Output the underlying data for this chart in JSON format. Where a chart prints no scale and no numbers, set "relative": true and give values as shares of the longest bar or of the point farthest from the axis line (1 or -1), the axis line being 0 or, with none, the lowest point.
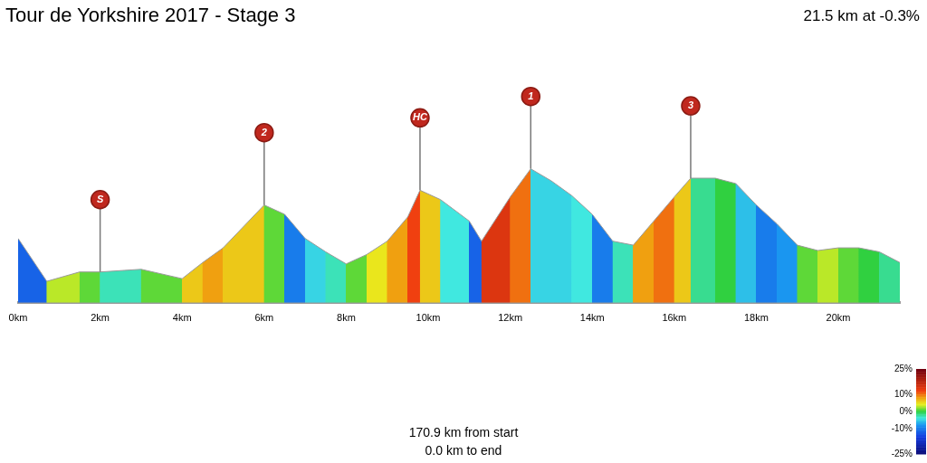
{
  "chart_data": {
    "type": "area",
    "title": "Tour de Yorkshire 2017 - Stage 3",
    "relative": true,
    "x": [
      0,
      0.7,
      1.5,
      2,
      3,
      4,
      4.5,
      5,
      6,
      6.5,
      7,
      7.5,
      8,
      8.5,
      9,
      9.5,
      9.8,
      10.3,
      11,
      11.3,
      12,
      12.5,
      13,
      13.5,
      14,
      14.5,
      15,
      15.5,
      16,
      16.4,
      17,
      17.5,
      18,
      18.5,
      19,
      19.5,
      20,
      20.5,
      21,
      21.5
    ],
    "values": [
      0.48,
      0.16,
      0.23,
      0.23,
      0.25,
      0.18,
      0.3,
      0.41,
      0.73,
      0.66,
      0.48,
      0.38,
      0.29,
      0.36,
      0.46,
      0.64,
      0.84,
      0.77,
      0.61,
      0.46,
      0.79,
      1,
      0.91,
      0.8,
      0.66,
      0.46,
      0.43,
      0.61,
      0.79,
      0.93,
      0.93,
      0.89,
      0.73,
      0.59,
      0.43,
      0.39,
      0.41,
      0.41,
      0.38,
      0.3
    ],
    "colors": [
      "#1763e7",
      "#bae828",
      "#5ed838",
      "#3ce2b8",
      "#5ed838",
      "#ecc818",
      "#f0a010",
      "#ecc818",
      "#5ed838",
      "#187ceb",
      "#37d4e4",
      "#3ce2b8",
      "#5ed838",
      "#eae61c",
      "#f0a010",
      "#f04010",
      "#ecc818",
      "#40e8e0",
      "#1763e7",
      "#dc3610",
      "#f07010",
      "#37d4e4",
      "#37d4e4",
      "#40e8e0",
      "#187ceb",
      "#3ce2b8",
      "#f0a010",
      "#f07010",
      "#ecc818",
      "#38dc90",
      "#30d040",
      "#2dbfe8",
      "#187ceb",
      "#1a96f0",
      "#5ed838",
      "#bae828",
      "#5ed838",
      "#30d040",
      "#38dc90",
      "#37d4e4"
    ],
    "clim": [
      -25,
      25
    ],
    "cticks": [
      {
        "value": 25,
        "label": "25%"
      },
      {
        "value": 10,
        "label": "10%"
      },
      {
        "value": 0,
        "label": "0%"
      },
      {
        "value": -10,
        "label": "-10%"
      },
      {
        "value": -25,
        "label": "-25%"
      }
    ],
    "xlim": [
      0,
      21.5
    ],
    "xticks": [
      {
        "value": 0,
        "label": "0km"
      },
      {
        "value": 2,
        "label": "2km"
      },
      {
        "value": 4,
        "label": "4km"
      },
      {
        "value": 6,
        "label": "6km"
      },
      {
        "value": 8,
        "label": "8km"
      },
      {
        "value": 10,
        "label": "10km"
      },
      {
        "value": 12,
        "label": "12km"
      },
      {
        "value": 14,
        "label": "14km"
      },
      {
        "value": 16,
        "label": "16km"
      },
      {
        "value": 18,
        "label": "18km"
      },
      {
        "value": 20,
        "label": "20km"
      }
    ],
    "tick_labels": "x",
    "grid": false,
    "legend": false,
    "annotations": [
      "21.5 km at -0.3%",
      "170.9 km from start",
      "0.0 km to end",
      {
        "text": "S",
        "x": 2,
        "y": 0.23
      },
      {
        "text": "2",
        "x": 6,
        "y": 0.73
      },
      {
        "text": "HC",
        "x": 9.8,
        "y": 0.84
      },
      {
        "text": "1",
        "x": 12.5,
        "y": 1
      },
      {
        "text": "3",
        "x": 16.4,
        "y": 0.93
      }
    ]
  }
}
